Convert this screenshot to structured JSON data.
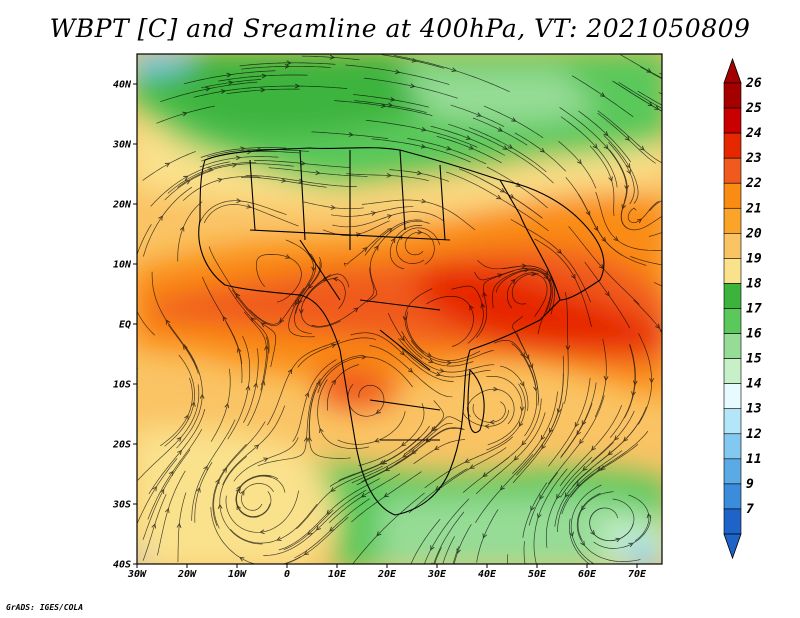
{
  "title": "WBPT [C] and Sreamline at 400hPa, VT: 2021050809",
  "credit": "GrADS: IGES/COLA",
  "map": {
    "lon_range": [
      -30,
      75
    ],
    "lat_range": [
      -40,
      45
    ],
    "lon_ticks": [
      {
        "value": -30,
        "label": "30W"
      },
      {
        "value": -20,
        "label": "20W"
      },
      {
        "value": -10,
        "label": "10W"
      },
      {
        "value": 0,
        "label": "0"
      },
      {
        "value": 10,
        "label": "10E"
      },
      {
        "value": 20,
        "label": "20E"
      },
      {
        "value": 30,
        "label": "30E"
      },
      {
        "value": 40,
        "label": "40E"
      },
      {
        "value": 50,
        "label": "50E"
      },
      {
        "value": 60,
        "label": "60E"
      },
      {
        "value": 70,
        "label": "70E"
      }
    ],
    "lat_ticks": [
      {
        "value": 40,
        "label": "40N"
      },
      {
        "value": 30,
        "label": "30N"
      },
      {
        "value": 20,
        "label": "20N"
      },
      {
        "value": 10,
        "label": "10N"
      },
      {
        "value": 0,
        "label": "EQ"
      },
      {
        "value": -10,
        "label": "10S"
      },
      {
        "value": -20,
        "label": "20S"
      },
      {
        "value": -30,
        "label": "30S"
      },
      {
        "value": -40,
        "label": "40S"
      }
    ]
  },
  "colorbar": {
    "levels": [
      {
        "label": "26",
        "color": "#a50000"
      },
      {
        "label": "25",
        "color": "#c80000"
      },
      {
        "label": "24",
        "color": "#e62800"
      },
      {
        "label": "23",
        "color": "#f05a1e"
      },
      {
        "label": "22",
        "color": "#fa8c14"
      },
      {
        "label": "21",
        "color": "#faa528"
      },
      {
        "label": "20",
        "color": "#fac364"
      },
      {
        "label": "19",
        "color": "#fae18c"
      },
      {
        "label": "18",
        "color": "#3cb43c"
      },
      {
        "label": "17",
        "color": "#5ac85a"
      },
      {
        "label": "16",
        "color": "#96dc96"
      },
      {
        "label": "15",
        "color": "#c8f0c8"
      },
      {
        "label": "14",
        "color": "#e6faff"
      },
      {
        "label": "13",
        "color": "#b4e6fa"
      },
      {
        "label": "12",
        "color": "#82c8f0"
      },
      {
        "label": "11",
        "color": "#5aaae6"
      },
      {
        "label": "9",
        "color": "#3c8cdc"
      },
      {
        "label": "7",
        "color": "#1e64c8"
      }
    ]
  }
}
